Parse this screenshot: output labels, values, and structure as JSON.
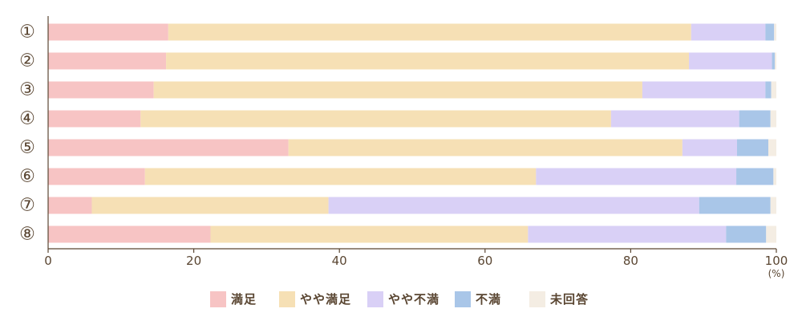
{
  "chart_data": {
    "type": "bar",
    "orientation": "horizontal",
    "stacked": true,
    "categories": [
      "①",
      "②",
      "③",
      "④",
      "⑤",
      "⑥",
      "⑦",
      "⑧"
    ],
    "series": [
      {
        "name": "満足",
        "color": "#f7c4c4",
        "values": [
          16.5,
          16.2,
          14.5,
          12.7,
          33.0,
          13.3,
          6.0,
          22.3
        ]
      },
      {
        "name": "やや満足",
        "color": "#f6e0b5",
        "values": [
          71.8,
          71.8,
          67.1,
          64.6,
          54.1,
          53.7,
          32.5,
          43.6
        ]
      },
      {
        "name": "やや不満",
        "color": "#d9d0f6",
        "values": [
          10.2,
          11.4,
          16.9,
          17.6,
          7.5,
          27.5,
          50.9,
          27.2
        ]
      },
      {
        "name": "不満",
        "color": "#a9c6e8",
        "values": [
          1.2,
          0.4,
          0.8,
          4.3,
          4.3,
          5.1,
          9.8,
          5.5
        ]
      },
      {
        "name": "未回答",
        "color": "#f4ede3",
        "values": [
          0.3,
          0.2,
          0.7,
          0.8,
          1.1,
          0.4,
          0.8,
          1.4
        ]
      }
    ],
    "xlim": [
      0,
      100
    ],
    "xticks": [
      "0",
      "20",
      "40",
      "60",
      "80",
      "100"
    ],
    "x_unit": "(%)",
    "legend_position": "bottom",
    "grid": false
  }
}
